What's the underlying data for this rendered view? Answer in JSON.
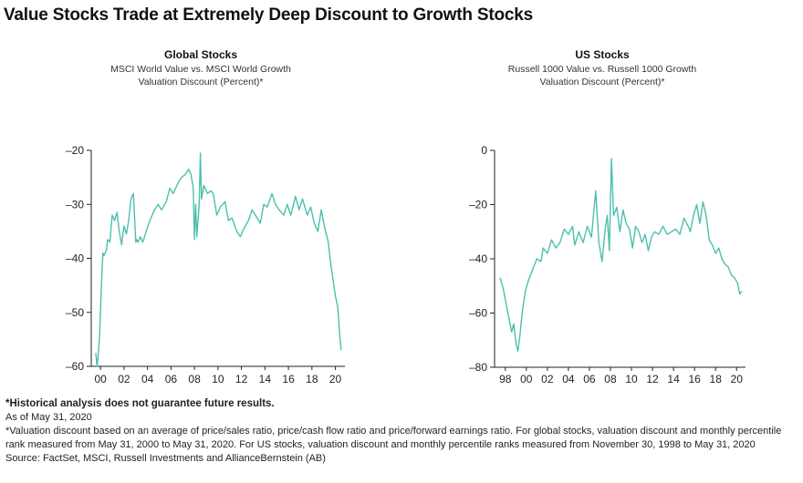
{
  "title": "Value Stocks Trade at Extremely Deep Discount to Growth Stocks",
  "footnotes": {
    "warning": "*Historical analysis does not guarantee future results.",
    "asof": "As of May 31, 2020",
    "method": "*Valuation discount based on an average of price/sales ratio, price/cash flow ratio and price/forward earnings ratio. For global stocks, valuation discount and monthly percentile rank measured from May 31, 2000 to May 31, 2020. For US stocks, valuation discount and monthly percentile ranks measured from November 30, 1998 to May 31, 2020",
    "source": "Source: FactSet, MSCI, Russell Investments and AllianceBernstein (AB)"
  },
  "colors": {
    "line": "#4dbfae",
    "axis": "#222222"
  },
  "chart_data": [
    {
      "type": "line",
      "title": "Global Stocks",
      "subtitle1": "MSCI World Value vs. MSCI World Growth",
      "subtitle2": "Valuation Discount (Percent)*",
      "ylim": [
        -60,
        -20
      ],
      "yticks": [
        "–20",
        "–30",
        "–40",
        "–50",
        "–60"
      ],
      "ytick_values": [
        -20,
        -30,
        -40,
        -50,
        -60
      ],
      "xlim": [
        2000.0,
        2020.9
      ],
      "xticks": [
        "00",
        "02",
        "04",
        "06",
        "08",
        "10",
        "12",
        "14",
        "16",
        "18",
        "20"
      ],
      "xtick_values": [
        2000.4,
        2002.4,
        2004.4,
        2006.4,
        2008.4,
        2010.4,
        2012.4,
        2014.4,
        2016.4,
        2018.4,
        2020.4
      ],
      "series": [
        {
          "x": [
            2000.0,
            2000.1,
            2000.2,
            2000.3,
            2000.4,
            2000.5,
            2000.6,
            2000.7,
            2000.8,
            2000.9,
            2001.0,
            2001.2,
            2001.4,
            2001.6,
            2001.8,
            2002.0,
            2002.2,
            2002.4,
            2002.6,
            2002.8,
            2003.0,
            2003.2,
            2003.4,
            2003.5,
            2003.6,
            2003.8,
            2004.0,
            2004.3,
            2004.6,
            2005.0,
            2005.3,
            2005.6,
            2006.0,
            2006.3,
            2006.6,
            2007.0,
            2007.3,
            2007.6,
            2007.9,
            2008.1,
            2008.3,
            2008.4,
            2008.5,
            2008.6,
            2008.8,
            2008.9,
            2009.0,
            2009.2,
            2009.5,
            2009.8,
            2010.0,
            2010.3,
            2010.6,
            2011.0,
            2011.3,
            2011.6,
            2012.0,
            2012.3,
            2012.6,
            2013.0,
            2013.3,
            2013.6,
            2014.0,
            2014.3,
            2014.6,
            2015.0,
            2015.3,
            2015.6,
            2016.0,
            2016.3,
            2016.6,
            2017.0,
            2017.3,
            2017.6,
            2018.0,
            2018.3,
            2018.6,
            2018.9,
            2019.2,
            2019.5,
            2019.8,
            2020.0,
            2020.2,
            2020.4,
            2020.6,
            2020.8,
            2020.9
          ],
          "y": [
            -57.5,
            -60.0,
            -58.0,
            -55.0,
            -50.0,
            -44.0,
            -39.0,
            -39.5,
            -39.0,
            -38.5,
            -36.5,
            -37.0,
            -32.0,
            -33.0,
            -31.5,
            -35.0,
            -37.5,
            -34.0,
            -35.5,
            -33.0,
            -29.0,
            -28.0,
            -37.0,
            -36.5,
            -37.0,
            -36.0,
            -37.0,
            -35.0,
            -33.0,
            -31.0,
            -30.0,
            -31.0,
            -29.5,
            -27.0,
            -28.0,
            -26.0,
            -25.0,
            -24.5,
            -23.5,
            -24.5,
            -27.0,
            -36.5,
            -30.0,
            -36.0,
            -30.0,
            -20.5,
            -29.0,
            -26.5,
            -28.0,
            -27.5,
            -28.0,
            -32.0,
            -30.5,
            -29.5,
            -33.0,
            -32.5,
            -35.0,
            -36.0,
            -34.5,
            -33.0,
            -31.0,
            -32.0,
            -33.5,
            -30.0,
            -30.5,
            -28.0,
            -30.0,
            -31.0,
            -32.0,
            -30.0,
            -32.0,
            -28.5,
            -31.0,
            -29.0,
            -32.0,
            -30.5,
            -33.5,
            -35.0,
            -31.0,
            -34.5,
            -37.0,
            -41.0,
            -44.0,
            -47.0,
            -49.0,
            -55.0,
            -57.0
          ]
        }
      ]
    },
    {
      "type": "line",
      "title": "US Stocks",
      "subtitle1": "Russell 1000 Value vs. Russell 1000 Growth",
      "subtitle2": "Valuation Discount (Percent)*",
      "ylim": [
        -80,
        0
      ],
      "yticks": [
        "0",
        "–20",
        "–40",
        "–60",
        "–80"
      ],
      "ytick_values": [
        0,
        -20,
        -40,
        -60,
        -80
      ],
      "xlim": [
        1997.9,
        2020.9
      ],
      "xticks": [
        "98",
        "00",
        "02",
        "04",
        "06",
        "08",
        "10",
        "12",
        "14",
        "16",
        "18",
        "20"
      ],
      "xtick_values": [
        1998.4,
        2000.4,
        2002.4,
        2004.4,
        2006.4,
        2008.4,
        2010.4,
        2012.4,
        2014.4,
        2016.4,
        2018.4,
        2020.4
      ],
      "series": [
        {
          "x": [
            1997.9,
            1998.2,
            1998.5,
            1998.8,
            1999.0,
            1999.2,
            1999.4,
            1999.6,
            1999.8,
            2000.0,
            2000.3,
            2000.6,
            2001.0,
            2001.4,
            2001.8,
            2002.0,
            2002.4,
            2002.8,
            2003.2,
            2003.6,
            2004.0,
            2004.4,
            2004.8,
            2005.0,
            2005.4,
            2005.8,
            2006.2,
            2006.6,
            2007.0,
            2007.3,
            2007.6,
            2007.9,
            2008.1,
            2008.3,
            2008.5,
            2008.7,
            2009.0,
            2009.3,
            2009.6,
            2009.9,
            2010.2,
            2010.5,
            2010.8,
            2011.1,
            2011.4,
            2011.7,
            2012.0,
            2012.3,
            2012.6,
            2013.0,
            2013.4,
            2013.8,
            2014.2,
            2014.6,
            2015.0,
            2015.4,
            2015.8,
            2016.0,
            2016.3,
            2016.6,
            2016.9,
            2017.2,
            2017.5,
            2017.8,
            2018.1,
            2018.4,
            2018.7,
            2019.0,
            2019.3,
            2019.6,
            2019.9,
            2020.2,
            2020.5,
            2020.7,
            2020.9
          ],
          "y": [
            -47.0,
            -51.0,
            -57.0,
            -63.0,
            -67.0,
            -64.0,
            -71.0,
            -74.0,
            -68.0,
            -60.0,
            -52.0,
            -48.0,
            -44.0,
            -40.0,
            -41.0,
            -36.0,
            -38.0,
            -33.0,
            -36.0,
            -34.0,
            -29.0,
            -31.0,
            -28.0,
            -35.0,
            -30.0,
            -34.0,
            -28.0,
            -32.0,
            -15.0,
            -34.0,
            -41.0,
            -29.0,
            -24.0,
            -37.0,
            -3.0,
            -24.0,
            -21.0,
            -30.0,
            -22.0,
            -27.0,
            -29.0,
            -36.0,
            -28.0,
            -30.0,
            -34.0,
            -31.0,
            -37.0,
            -32.0,
            -30.0,
            -31.0,
            -28.0,
            -31.0,
            -30.0,
            -29.0,
            -31.0,
            -25.0,
            -28.0,
            -30.0,
            -24.0,
            -20.0,
            -27.0,
            -19.0,
            -24.0,
            -33.0,
            -35.0,
            -38.0,
            -36.0,
            -40.0,
            -42.0,
            -43.0,
            -46.0,
            -47.0,
            -49.0,
            -53.0,
            -52.0
          ]
        }
      ]
    }
  ]
}
